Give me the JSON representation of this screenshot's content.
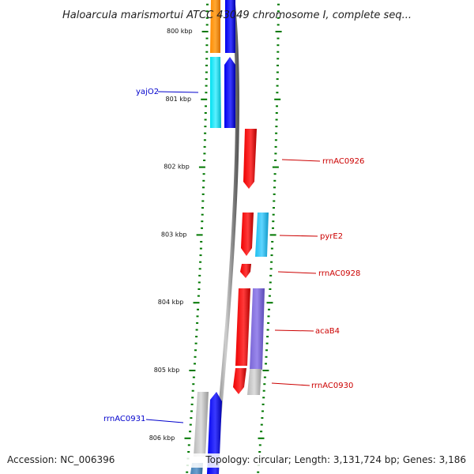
{
  "title": "Haloarcula marismortui ATCC 43049 chromosome I, complete seq...",
  "footer": {
    "accession": "Accession: NC_006396",
    "summary": "Topology: circular; Length: 3,131,724 bp; Genes: 3,186"
  },
  "ticks": [
    {
      "label": "800 kbp",
      "kbp": 800
    },
    {
      "label": "801 kbp",
      "kbp": 801
    },
    {
      "label": "802 kbp",
      "kbp": 802
    },
    {
      "label": "803 kbp",
      "kbp": 803
    },
    {
      "label": "804 kbp",
      "kbp": 804
    },
    {
      "label": "805 kbp",
      "kbp": 805
    },
    {
      "label": "806 kbp",
      "kbp": 806
    }
  ],
  "gene_labels": [
    {
      "name": "yajO2",
      "color": "#0000cc"
    },
    {
      "name": "rrnAC0926",
      "color": "#cc0000"
    },
    {
      "name": "pyrE2",
      "color": "#cc0000"
    },
    {
      "name": "rrnAC0928",
      "color": "#cc0000"
    },
    {
      "name": "acaB4",
      "color": "#cc0000"
    },
    {
      "name": "rrnAC0930",
      "color": "#cc0000"
    },
    {
      "name": "rrnAC0931",
      "color": "#0000cc"
    }
  ],
  "colors": {
    "forward_cds": "#0000ee",
    "reverse_cds": "#ee0000",
    "orange_feature": "#ff8c00",
    "cyan_feature": "#00e0f0",
    "sky_feature": "#1ec0f0",
    "purple_feature": "#7a66d6",
    "gray_feature": "#b8b8b8",
    "steel_feature": "#4682b4",
    "backbone": "#808080",
    "tick": "#007700"
  }
}
